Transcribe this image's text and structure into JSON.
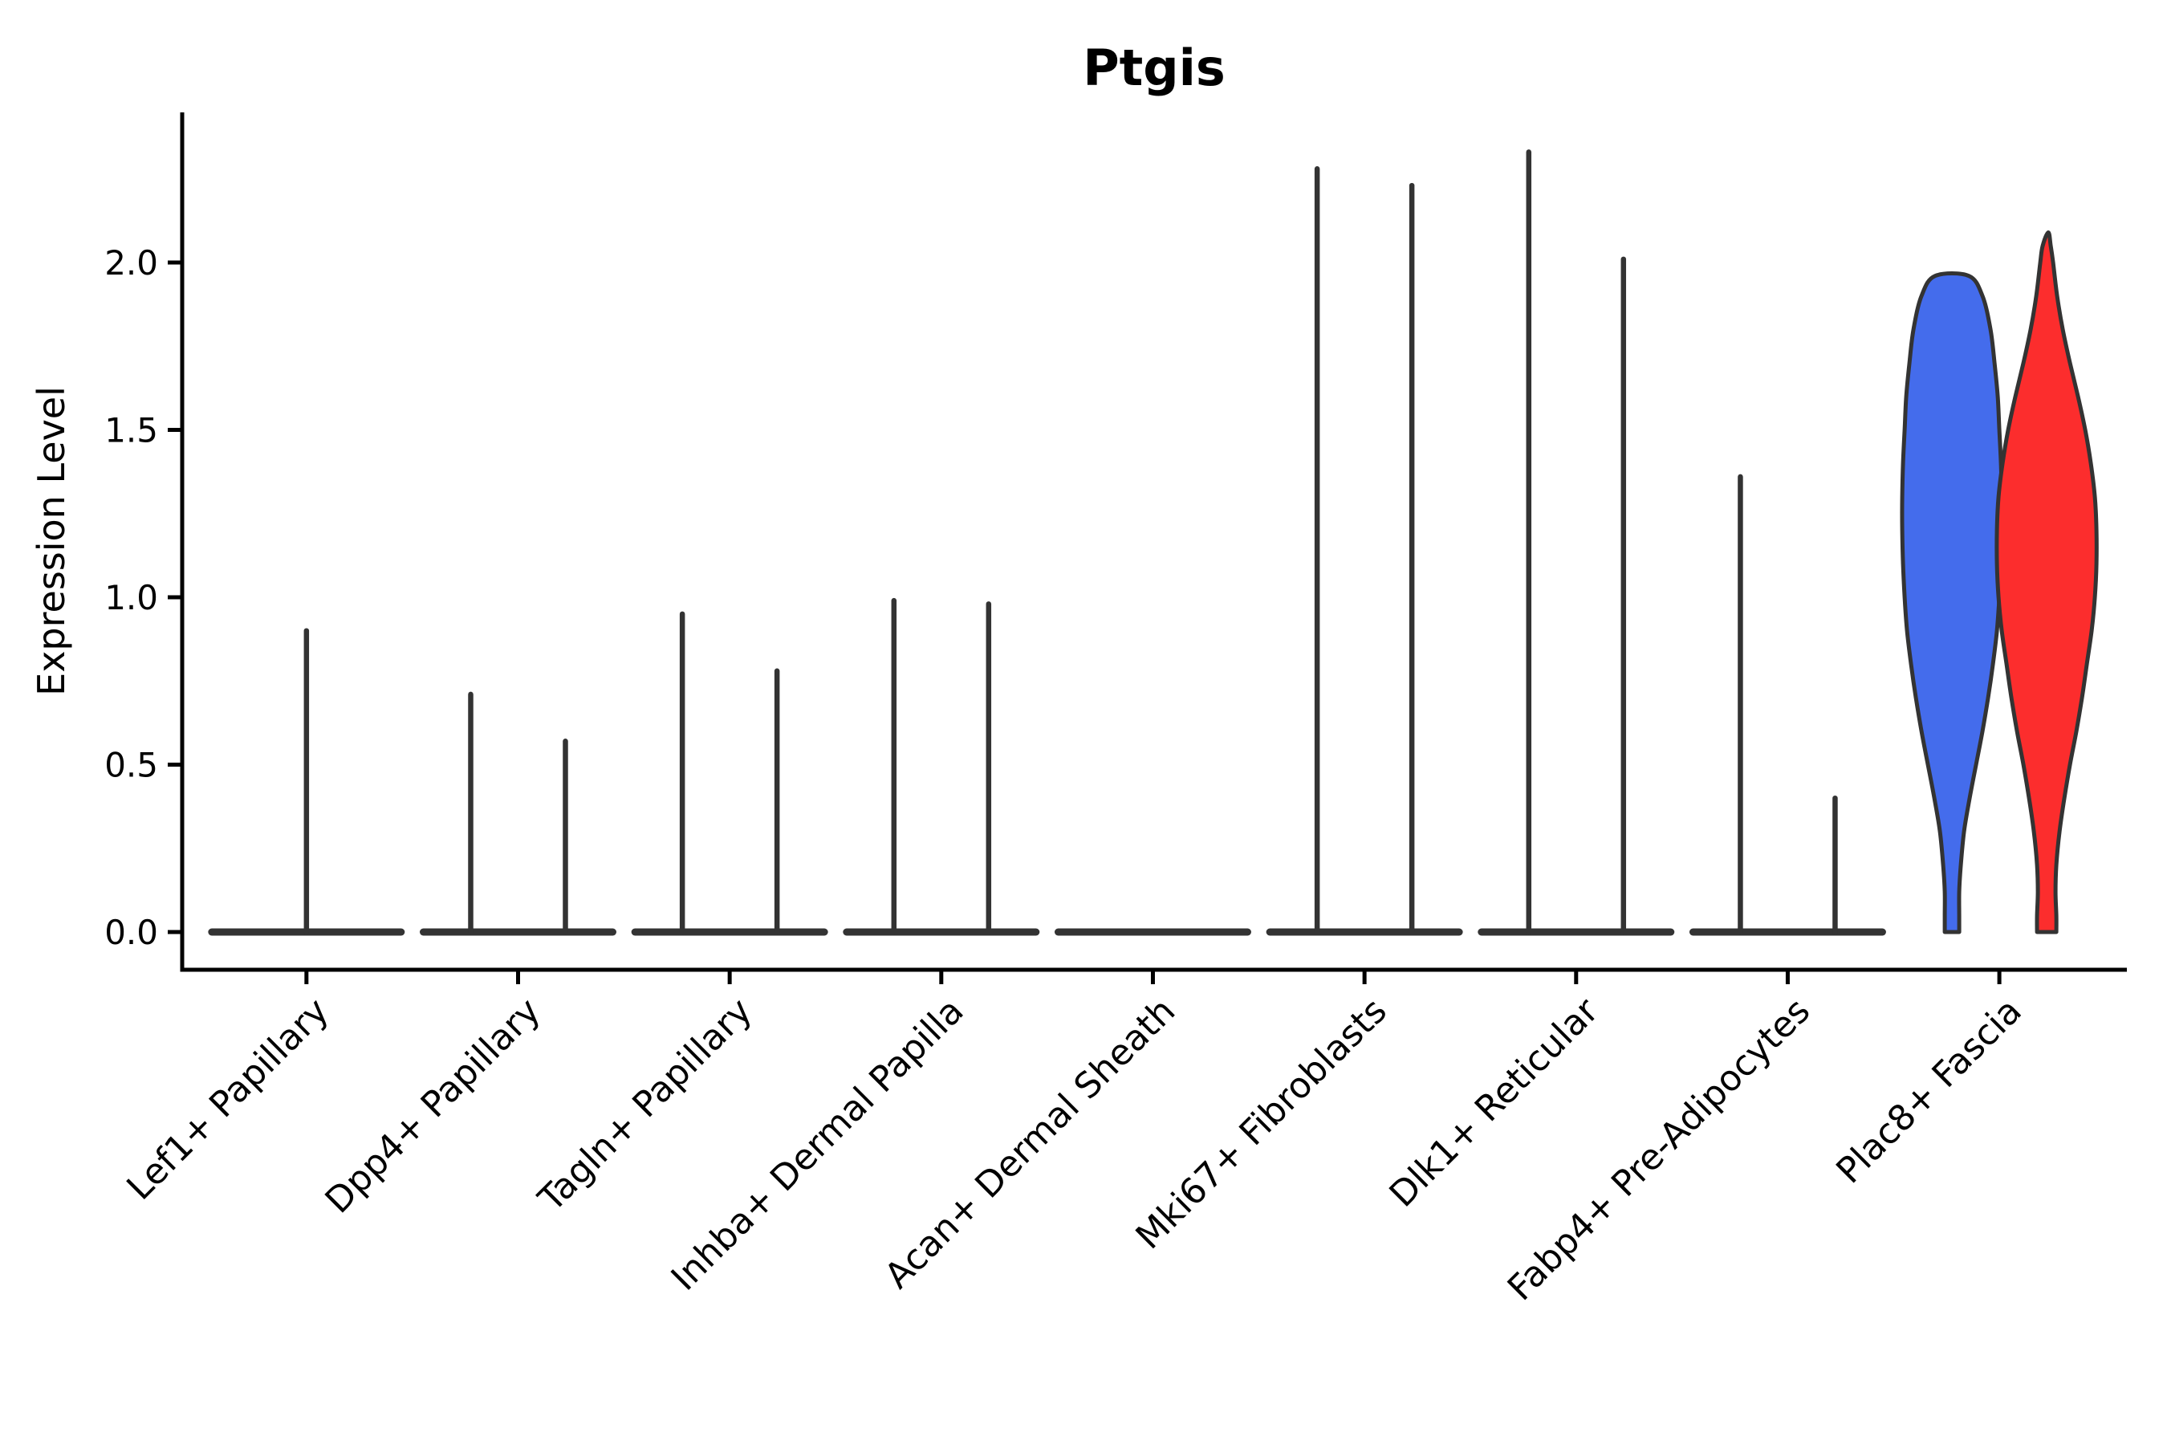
{
  "chart_data": {
    "type": "violin",
    "title": "Ptgis",
    "ylabel": "Expression Level",
    "xlabel": "",
    "grid": false,
    "legend": "none",
    "ytick_labels": [
      "0.0",
      "0.5",
      "1.0",
      "1.5",
      "2.0"
    ],
    "ytick_values": [
      0.0,
      0.5,
      1.0,
      1.5,
      2.0
    ],
    "ylim": [
      -0.11,
      2.45
    ],
    "x_tick_rotation": 45,
    "categories": [
      "Lef1+ Papillary",
      "Dpp4+ Papillary",
      "Tagln+ Papillary",
      "Inhba+ Dermal Papilla",
      "Acan+ Dermal Sheath",
      "Mki67+ Fibroblasts",
      "Dlk1+ Reticular",
      "Fabp4+ Pre-Adipocytes",
      "Plac8+ Fascia"
    ],
    "colors": {
      "violin_left_fill": "#446CEC",
      "violin_right_fill": "#FC2D2D",
      "outline": "#333333",
      "axis": "#000000"
    },
    "violins": [
      {
        "category": "Lef1+ Papillary",
        "baseline": true,
        "spikes": [
          {
            "pos": "center",
            "max": 0.9
          }
        ]
      },
      {
        "category": "Dpp4+ Papillary",
        "baseline": true,
        "spikes": [
          {
            "pos": "left",
            "max": 0.71
          },
          {
            "pos": "right",
            "max": 0.57
          }
        ]
      },
      {
        "category": "Tagln+ Papillary",
        "baseline": true,
        "spikes": [
          {
            "pos": "left",
            "max": 0.95
          },
          {
            "pos": "right",
            "max": 0.78
          }
        ]
      },
      {
        "category": "Inhba+ Dermal Papilla",
        "baseline": true,
        "spikes": [
          {
            "pos": "left",
            "max": 0.99
          },
          {
            "pos": "right",
            "max": 0.98
          }
        ]
      },
      {
        "category": "Acan+ Dermal Sheath",
        "baseline": true,
        "spikes": []
      },
      {
        "category": "Mki67+ Fibroblasts",
        "baseline": true,
        "spikes": [
          {
            "pos": "left",
            "max": 2.28
          },
          {
            "pos": "right",
            "max": 2.23
          }
        ]
      },
      {
        "category": "Dlk1+ Reticular",
        "baseline": true,
        "spikes": [
          {
            "pos": "left",
            "max": 2.33
          },
          {
            "pos": "right",
            "max": 2.01
          }
        ]
      },
      {
        "category": "Fabp4+ Pre-Adipocytes",
        "baseline": true,
        "spikes": [
          {
            "pos": "left",
            "max": 1.36
          },
          {
            "pos": "right",
            "max": 0.4
          }
        ]
      },
      {
        "category": "Plac8+ Fascia",
        "baseline": false,
        "spikes": [],
        "full_violins": [
          {
            "pos": "left",
            "color_key": "violin_left_fill",
            "max": 1.96,
            "top": "truncated",
            "profile": [
              [
                0,
                9
              ],
              [
                0.05,
                9
              ],
              [
                0.12,
                9
              ],
              [
                0.2,
                11
              ],
              [
                0.3,
                15
              ],
              [
                0.4,
                22
              ],
              [
                0.5,
                30
              ],
              [
                0.6,
                38
              ],
              [
                0.7,
                45
              ],
              [
                0.8,
                51
              ],
              [
                0.9,
                56
              ],
              [
                1.0,
                59
              ],
              [
                1.1,
                61
              ],
              [
                1.2,
                62
              ],
              [
                1.3,
                62
              ],
              [
                1.4,
                61
              ],
              [
                1.5,
                59
              ],
              [
                1.6,
                57
              ],
              [
                1.7,
                53
              ],
              [
                1.8,
                48
              ],
              [
                1.9,
                38
              ],
              [
                1.96,
                21
              ]
            ]
          },
          {
            "pos": "right",
            "color_key": "violin_right_fill",
            "max": 2.09,
            "top": "pointed",
            "profile": [
              [
                0,
                12
              ],
              [
                0.05,
                12
              ],
              [
                0.12,
                11
              ],
              [
                0.2,
                12
              ],
              [
                0.3,
                16
              ],
              [
                0.4,
                22
              ],
              [
                0.5,
                29
              ],
              [
                0.6,
                37
              ],
              [
                0.7,
                44
              ],
              [
                0.8,
                50
              ],
              [
                0.9,
                56
              ],
              [
                1.0,
                60
              ],
              [
                1.1,
                62
              ],
              [
                1.2,
                62
              ],
              [
                1.3,
                60
              ],
              [
                1.4,
                55
              ],
              [
                1.5,
                48
              ],
              [
                1.6,
                39
              ],
              [
                1.7,
                29
              ],
              [
                1.8,
                20
              ],
              [
                1.9,
                13
              ],
              [
                2.0,
                8
              ],
              [
                2.05,
                5
              ],
              [
                2.09,
                2
              ]
            ]
          }
        ]
      }
    ]
  }
}
